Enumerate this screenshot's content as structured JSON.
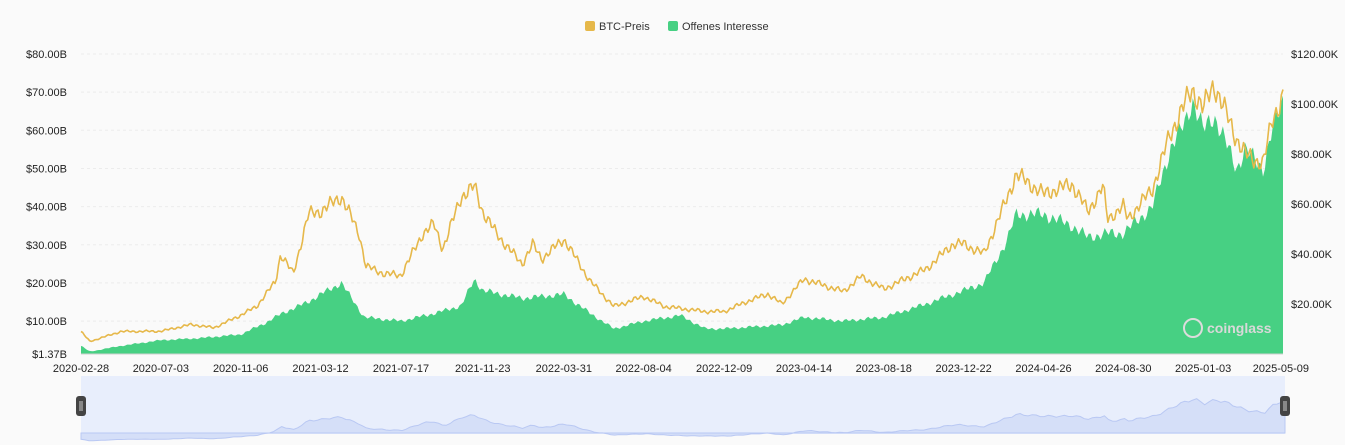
{
  "chart_data": {
    "type": "area",
    "title": "",
    "legend": {
      "placement": "top-center",
      "items": [
        {
          "label": "BTC-Preis",
          "color": "#e6b84a"
        },
        {
          "label": "Offenes Interesse",
          "color": "#47d083"
        }
      ]
    },
    "y_left": {
      "ticks": [
        "$80.00B",
        "$70.00B",
        "$60.00B",
        "$50.00B",
        "$40.00B",
        "$30.00B",
        "$20.00B",
        "$10.00B",
        "$1.37B"
      ],
      "tick_values": [
        80,
        70,
        60,
        50,
        40,
        30,
        20,
        10,
        1.37
      ],
      "min": 1.37,
      "max": 80,
      "unit": "B USD"
    },
    "y_right": {
      "ticks": [
        "$120.00K",
        "$100.00K",
        "$80.00K",
        "$60.00K",
        "$40.00K",
        "$20.00K"
      ],
      "tick_values": [
        120,
        100,
        80,
        60,
        40,
        20
      ],
      "min": 0,
      "max": 120,
      "unit": "K USD"
    },
    "x_ticks": [
      "2020-02-28",
      "2020-07-03",
      "2020-11-06",
      "2021-03-12",
      "2021-07-17",
      "2021-11-23",
      "2022-03-31",
      "2022-08-04",
      "2022-12-09",
      "2023-04-14",
      "2023-08-18",
      "2023-12-22",
      "2024-04-26",
      "2024-08-30",
      "2025-01-03",
      "2025-05-09"
    ],
    "grid": "horizontal",
    "series": [
      {
        "name": "BTC-Preis",
        "type": "line",
        "axis": "right",
        "color": "#e6b84a",
        "x": [
          "2020-02-28",
          "2020-03-13",
          "2020-05-01",
          "2020-07-03",
          "2020-08-20",
          "2020-09-25",
          "2020-11-06",
          "2020-12-01",
          "2020-12-31",
          "2021-01-08",
          "2021-01-28",
          "2021-02-21",
          "2021-03-12",
          "2021-04-14",
          "2021-05-12",
          "2021-05-23",
          "2021-06-22",
          "2021-07-17",
          "2021-08-20",
          "2021-09-07",
          "2021-09-21",
          "2021-10-20",
          "2021-11-10",
          "2021-11-23",
          "2021-12-15",
          "2022-01-24",
          "2022-02-10",
          "2022-02-24",
          "2022-03-31",
          "2022-05-12",
          "2022-06-18",
          "2022-08-04",
          "2022-09-06",
          "2022-11-09",
          "2022-12-09",
          "2023-01-14",
          "2023-02-16",
          "2023-03-10",
          "2023-04-14",
          "2023-06-15",
          "2023-07-13",
          "2023-08-18",
          "2023-10-24",
          "2023-12-05",
          "2023-12-22",
          "2024-01-23",
          "2024-02-28",
          "2024-03-14",
          "2024-04-26",
          "2024-06-10",
          "2024-07-05",
          "2024-07-29",
          "2024-08-05",
          "2024-08-30",
          "2024-09-06",
          "2024-10-15",
          "2024-11-12",
          "2024-12-05",
          "2024-12-17",
          "2025-01-03",
          "2025-01-20",
          "2025-02-25",
          "2025-03-10",
          "2025-04-08",
          "2025-04-22",
          "2025-05-09"
        ],
        "values": [
          9.0,
          5.0,
          9.0,
          9.1,
          11.8,
          10.5,
          15.5,
          19.0,
          29.0,
          40.0,
          32.0,
          56.0,
          57.0,
          63.0,
          48.0,
          35.0,
          32.0,
          31.5,
          48.0,
          52.0,
          42.0,
          63.0,
          67.0,
          57.0,
          48.0,
          36.0,
          44.0,
          38.0,
          46.0,
          29.0,
          19.0,
          23.0,
          19.0,
          17.0,
          17.0,
          21.0,
          24.0,
          20.0,
          30.0,
          25.0,
          31.0,
          26.0,
          34.0,
          44.0,
          44.0,
          40.0,
          62.0,
          72.0,
          64.0,
          68.0,
          57.0,
          67.0,
          54.0,
          59.0,
          54.0,
          66.0,
          88.0,
          100.0,
          106.0,
          98.0,
          108.0,
          86.0,
          80.0,
          76.0,
          94.0,
          103.0
        ]
      },
      {
        "name": "Offenes Interesse",
        "type": "area",
        "axis": "left",
        "color": "#47d083",
        "x": [
          "2020-02-28",
          "2020-03-13",
          "2020-05-01",
          "2020-07-03",
          "2020-09-01",
          "2020-11-06",
          "2020-12-15",
          "2021-01-10",
          "2021-02-20",
          "2021-03-12",
          "2021-04-14",
          "2021-05-20",
          "2021-07-17",
          "2021-09-07",
          "2021-10-20",
          "2021-11-10",
          "2021-11-23",
          "2022-01-24",
          "2022-03-31",
          "2022-05-12",
          "2022-06-18",
          "2022-08-04",
          "2022-10-01",
          "2022-11-09",
          "2022-12-09",
          "2023-03-10",
          "2023-04-14",
          "2023-06-15",
          "2023-08-18",
          "2023-10-24",
          "2023-12-22",
          "2024-01-23",
          "2024-02-28",
          "2024-03-14",
          "2024-04-26",
          "2024-06-10",
          "2024-07-05",
          "2024-08-05",
          "2024-08-30",
          "2024-10-15",
          "2024-11-12",
          "2024-12-05",
          "2024-12-17",
          "2025-01-03",
          "2025-01-20",
          "2025-02-25",
          "2025-03-10",
          "2025-04-08",
          "2025-04-22",
          "2025-05-09"
        ],
        "values": [
          3.5,
          2.0,
          3.5,
          5.0,
          5.5,
          6.5,
          9.5,
          12.0,
          15.0,
          17.0,
          20.0,
          11.0,
          10.0,
          12.0,
          14.0,
          21.0,
          18.0,
          16.0,
          17.0,
          12.0,
          8.0,
          10.0,
          11.5,
          8.0,
          8.0,
          9.0,
          11.0,
          10.0,
          11.0,
          14.5,
          18.0,
          20.0,
          31.0,
          38.0,
          38.0,
          35.0,
          32.0,
          33.0,
          33.0,
          40.0,
          55.0,
          62.0,
          68.0,
          60.0,
          64.0,
          50.0,
          55.0,
          50.0,
          60.0,
          68.0
        ]
      }
    ],
    "navigator": {
      "color": "#bfcdf5",
      "fill": "#e8eefc"
    }
  },
  "watermark": "coinglass"
}
